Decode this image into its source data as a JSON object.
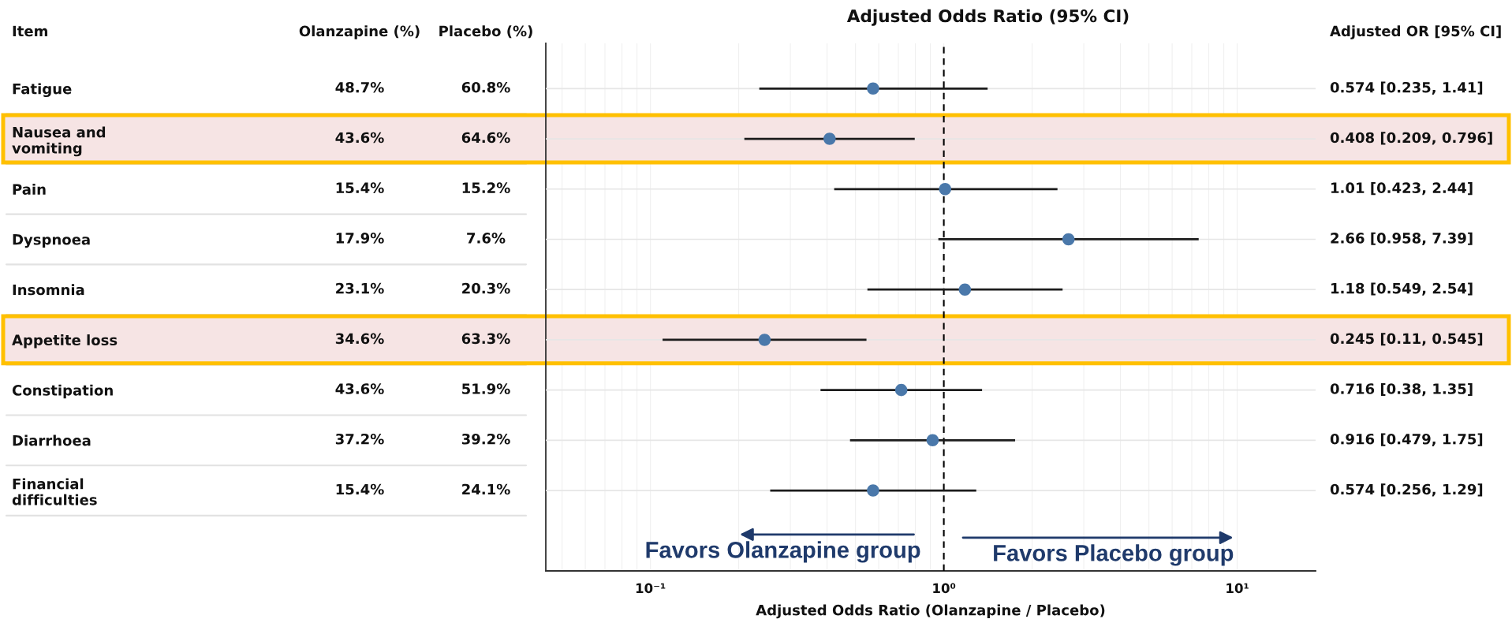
{
  "chart_data": [
    {
      "type": "other",
      "ylabel": "Item",
      "categories": [
        "Fatigue",
        "Nausea and\nvomiting",
        "Pain",
        "Dyspnoea",
        "Insomnia",
        "Appetite loss",
        "Constipation",
        "Diarrhoea",
        "Financial\ndifficulties"
      ],
      "series": [
        {
          "name": "Olanzapine (%)",
          "values": [
            48.7,
            43.6,
            15.4,
            17.9,
            23.1,
            34.6,
            43.6,
            37.2,
            15.4
          ],
          "value_labels": [
            "48.7%",
            "43.6%",
            "15.4%",
            "17.9%",
            "23.1%",
            "34.6%",
            "43.6%",
            "37.2%",
            "15.4%"
          ]
        },
        {
          "name": "Placebo (%)",
          "values": [
            60.8,
            64.6,
            15.2,
            7.6,
            20.3,
            63.3,
            51.9,
            39.2,
            24.1
          ],
          "value_labels": [
            "60.8%",
            "64.6%",
            "15.2%",
            "7.6%",
            "20.3%",
            "63.3%",
            "51.9%",
            "39.2%",
            "24.1%"
          ]
        }
      ]
    },
    {
      "type": "scatter",
      "orientation": "horizontal",
      "title": "Adjusted Odds Ratio (95% CI)",
      "xlabel": "Adjusted Odds Ratio (Olanzapine / Placebo)",
      "categories": [
        "Fatigue",
        "Nausea and\nvomiting",
        "Pain",
        "Dyspnoea",
        "Insomnia",
        "Appetite loss",
        "Constipation",
        "Diarrhoea",
        "Financial\ndifficulties"
      ],
      "tick_labels": "x",
      "series": [
        {
          "color": "#4a78aa",
          "values": [
            0.574,
            0.408,
            1.01,
            2.66,
            1.18,
            0.245,
            0.716,
            0.916,
            0.574
          ],
          "errors": [
            [
              0.235,
              1.41
            ],
            [
              0.209,
              0.796
            ],
            [
              0.423,
              2.44
            ],
            [
              0.958,
              7.39
            ],
            [
              0.549,
              2.54
            ],
            [
              0.11,
              0.545
            ],
            [
              0.38,
              1.35
            ],
            [
              0.479,
              1.75
            ],
            [
              0.256,
              1.29
            ]
          ]
        }
      ],
      "log": "x",
      "xlim": [
        0.044,
        18.5
      ],
      "xticks": [
        {
          "value": 0.1,
          "label": "10⁻¹"
        },
        {
          "value": 1,
          "label": "10⁰"
        },
        {
          "value": 10,
          "label": "10¹"
        }
      ],
      "grid": true,
      "marker": "circle",
      "ref_lines": [
        {
          "axis": "x",
          "value": 1,
          "line_style": "dashed",
          "color": "#000000"
        }
      ],
      "bands": [
        {
          "axis": "y",
          "from": "Nausea and\nvomiting",
          "to": "Nausea and\nvomiting",
          "color": "#f6e4e4"
        },
        {
          "axis": "y",
          "from": "Appetite loss",
          "to": "Appetite loss",
          "color": "#f6e4e4"
        }
      ],
      "annotations": [
        "Favors Olanzapine group",
        "Favors Placebo group"
      ]
    },
    {
      "type": "other",
      "series": [
        {
          "name": "Adjusted OR [95% CI]",
          "values": [
            0.574,
            0.408,
            1.01,
            2.66,
            1.18,
            0.245,
            0.716,
            0.916,
            0.574
          ],
          "value_labels": [
            "0.574 [0.235, 1.41]",
            "0.408 [0.209, 0.796]",
            "1.01 [0.423, 2.44]",
            "2.66 [0.958, 7.39]",
            "1.18 [0.549, 2.54]",
            "0.245 [0.11, 0.545]",
            "0.716 [0.38, 1.35]",
            "0.916 [0.479, 1.75]",
            "0.574 [0.256, 1.29]"
          ]
        }
      ]
    }
  ]
}
